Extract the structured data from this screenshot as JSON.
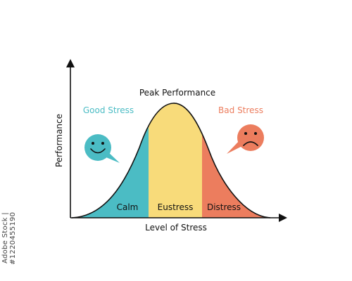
{
  "diagram": {
    "x_axis_label": "Level of Stress",
    "y_axis_label": "Performance",
    "peak_label": "Peak Performance",
    "good_label": "Good Stress",
    "bad_label": "Bad Stress",
    "zones": [
      {
        "label": "Calm",
        "color": "#4BBCC4"
      },
      {
        "label": "Eustress",
        "color": "#F8DB7A"
      },
      {
        "label": "Distress",
        "color": "#EC7D5E"
      }
    ],
    "good_color": "#4BBCC4",
    "bad_color": "#EC7D5E",
    "smiley_icon": "smiling-face-icon",
    "sad_icon": "sad-face-icon"
  },
  "watermark": {
    "stock_id": "Adobe Stock | #1220455190"
  }
}
